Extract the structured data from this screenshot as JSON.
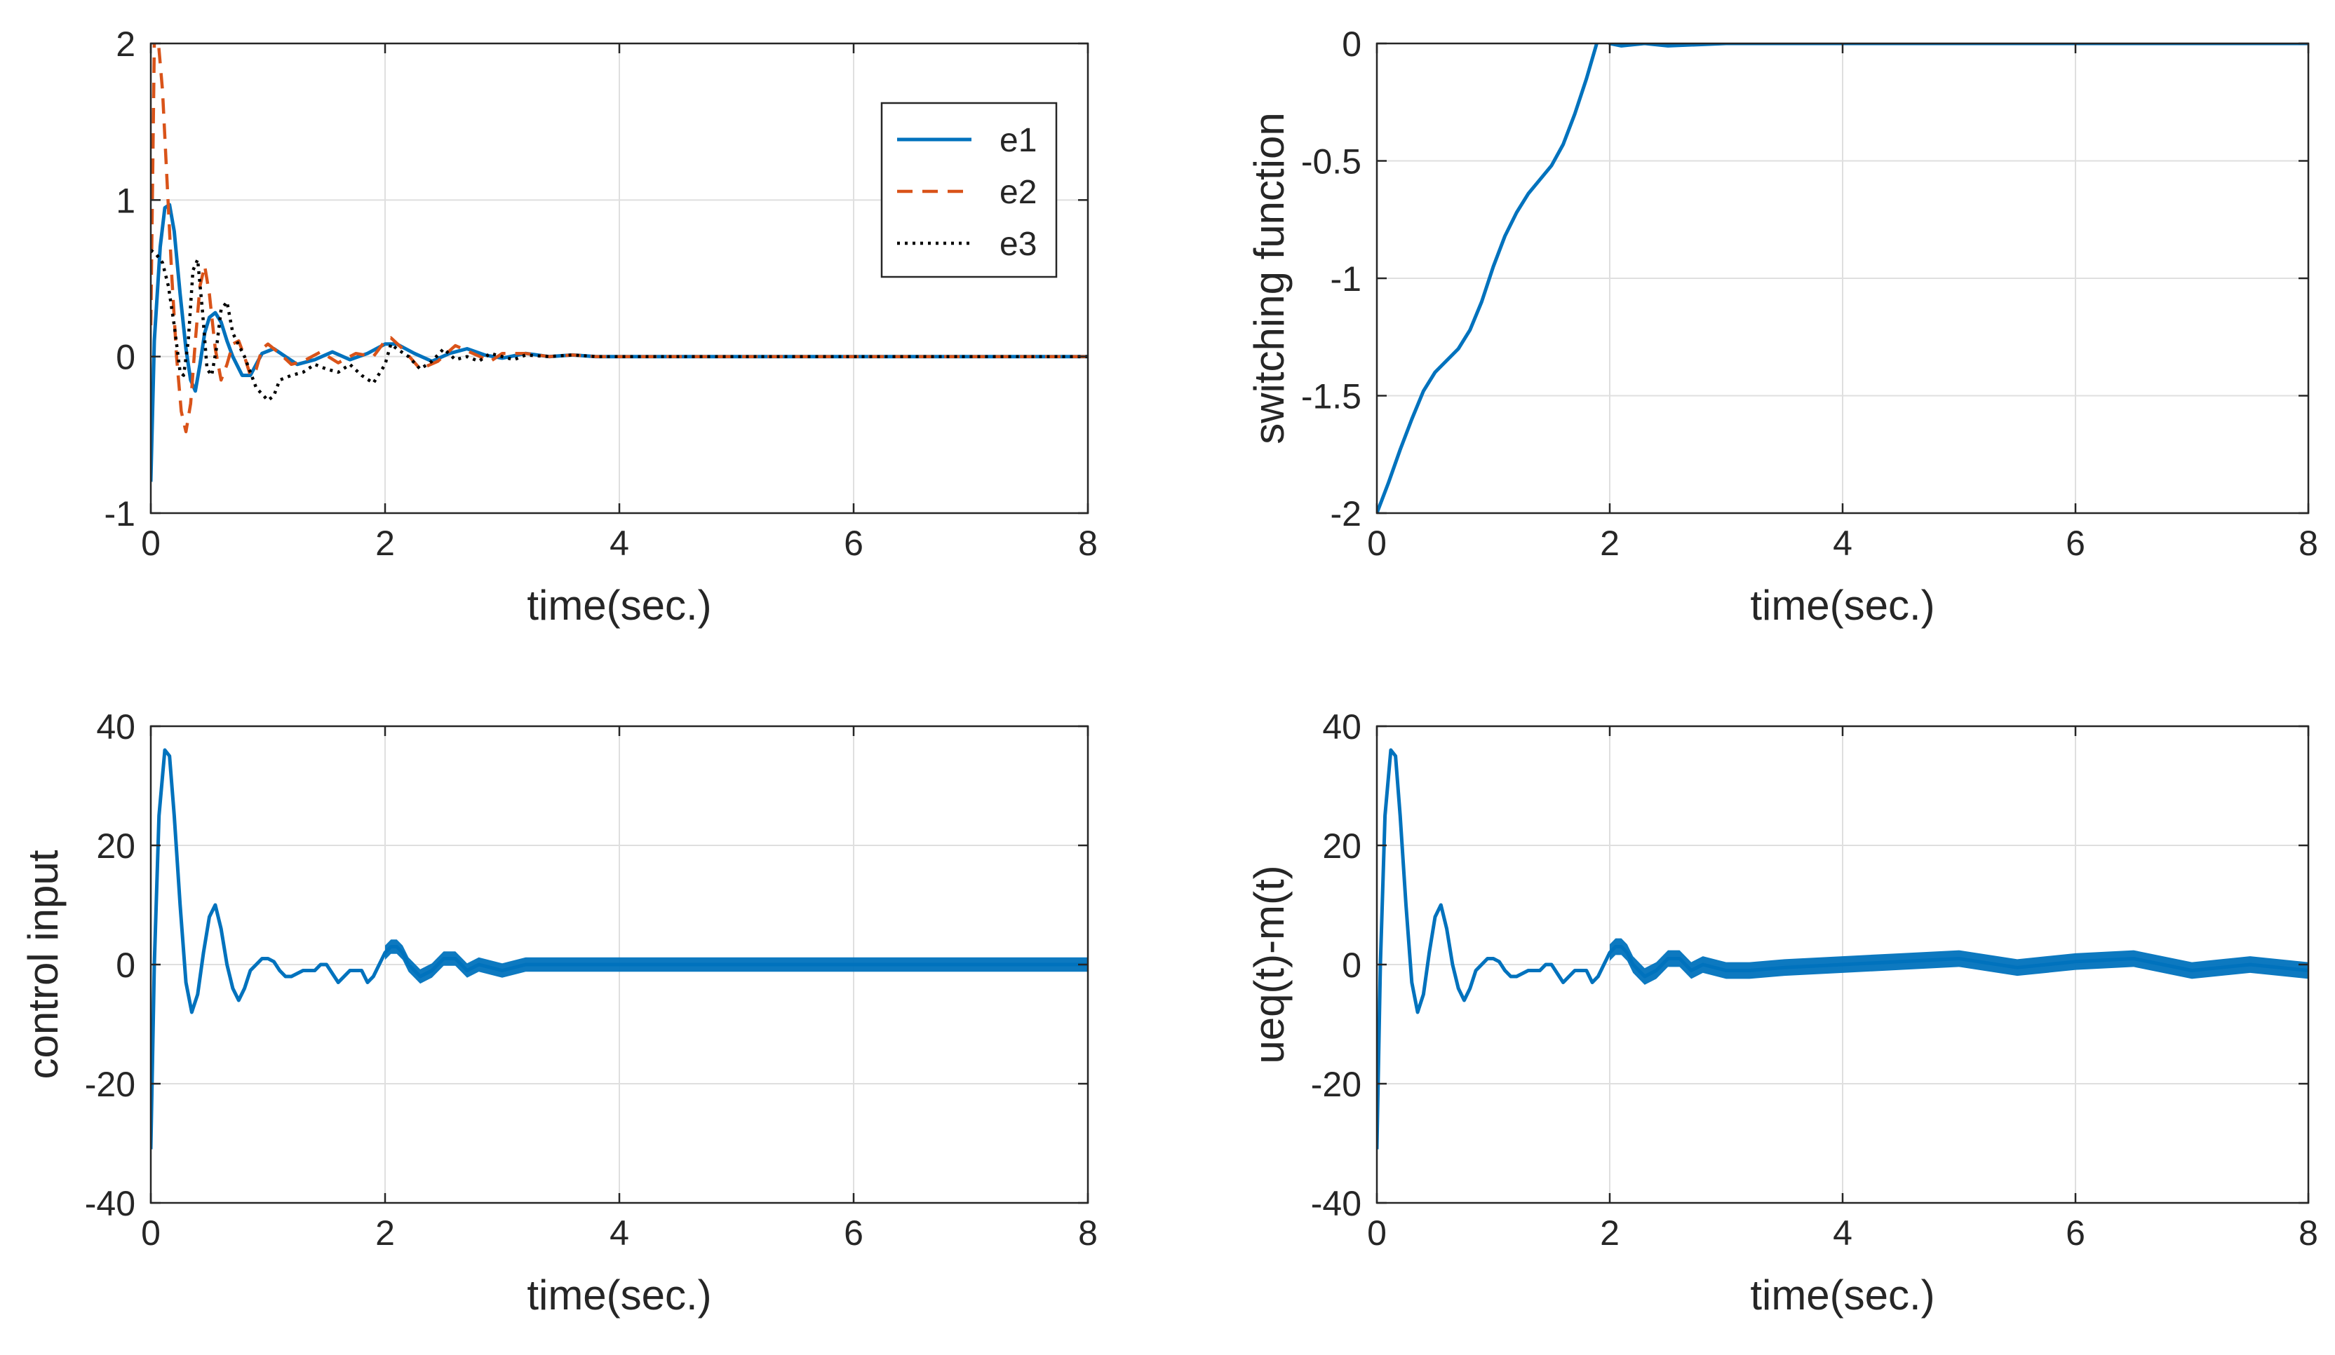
{
  "colors": {
    "blue": "#0072BD",
    "orange": "#D95319",
    "black": "#000000",
    "grid": "#DFDFDF",
    "axis": "#262626"
  },
  "chart_data": [
    {
      "type": "line",
      "xlabel": "time(sec.)",
      "ylabel": "",
      "xlim": [
        0,
        8
      ],
      "ylim": [
        -1,
        2
      ],
      "xticks": [
        "0",
        "2",
        "4",
        "6",
        "8"
      ],
      "yticks": [
        "-1",
        "0",
        "1",
        "2"
      ],
      "grid": true,
      "legend": {
        "position": "top-right",
        "entries": [
          "e1",
          "e2",
          "e3"
        ]
      },
      "series": [
        {
          "name": "e1",
          "style": "solid",
          "color": "#0072BD",
          "x": [
            0,
            0.03,
            0.08,
            0.12,
            0.16,
            0.2,
            0.25,
            0.3,
            0.34,
            0.38,
            0.42,
            0.46,
            0.5,
            0.55,
            0.6,
            0.65,
            0.7,
            0.78,
            0.85,
            0.95,
            1.05,
            1.15,
            1.25,
            1.4,
            1.55,
            1.7,
            1.85,
            2.0,
            2.1,
            2.25,
            2.4,
            2.55,
            2.7,
            2.85,
            3.0,
            3.2,
            3.4,
            3.6,
            3.8,
            4,
            5,
            6,
            7,
            8
          ],
          "y": [
            -0.8,
            0.1,
            0.7,
            0.95,
            0.97,
            0.8,
            0.4,
            0.05,
            -0.15,
            -0.22,
            -0.05,
            0.15,
            0.25,
            0.28,
            0.22,
            0.1,
            0.0,
            -0.12,
            -0.12,
            0.02,
            0.05,
            0.0,
            -0.05,
            -0.02,
            0.03,
            -0.02,
            0.02,
            0.08,
            0.08,
            0.02,
            -0.03,
            0.02,
            0.05,
            0.01,
            -0.01,
            0.02,
            0.0,
            0.01,
            0.0,
            0,
            0,
            0,
            0,
            0
          ]
        },
        {
          "name": "e2",
          "style": "dashed",
          "color": "#D95319",
          "x": [
            0,
            0.03,
            0.06,
            0.1,
            0.14,
            0.18,
            0.22,
            0.26,
            0.3,
            0.34,
            0.38,
            0.42,
            0.46,
            0.5,
            0.55,
            0.6,
            0.65,
            0.7,
            0.75,
            0.8,
            0.85,
            0.9,
            0.95,
            1.0,
            1.1,
            1.2,
            1.3,
            1.45,
            1.6,
            1.75,
            1.9,
            2.0,
            2.05,
            2.15,
            2.3,
            2.45,
            2.6,
            2.75,
            2.9,
            3.0,
            3.2,
            3.4,
            3.6,
            3.8,
            4,
            5,
            6,
            7,
            8
          ],
          "y": [
            0.2,
            2.0,
            2.05,
            1.7,
            1.1,
            0.5,
            0.0,
            -0.35,
            -0.48,
            -0.3,
            0.1,
            0.45,
            0.58,
            0.4,
            0.05,
            -0.15,
            -0.05,
            0.08,
            0.1,
            0.0,
            -0.12,
            -0.08,
            0.05,
            0.08,
            0.02,
            -0.05,
            -0.03,
            0.03,
            -0.04,
            0.02,
            0.0,
            0.1,
            0.12,
            0.05,
            -0.08,
            -0.03,
            0.07,
            0.02,
            -0.03,
            0.02,
            0.02,
            0.0,
            0.01,
            0.0,
            0,
            0,
            0,
            0,
            0
          ]
        },
        {
          "name": "e3",
          "style": "dotted",
          "color": "#000000",
          "x": [
            0,
            0.05,
            0.1,
            0.15,
            0.2,
            0.25,
            0.28,
            0.32,
            0.36,
            0.4,
            0.44,
            0.48,
            0.52,
            0.56,
            0.6,
            0.65,
            0.7,
            0.8,
            0.9,
            1.0,
            1.05,
            1.1,
            1.2,
            1.3,
            1.4,
            1.5,
            1.6,
            1.7,
            1.8,
            1.9,
            2.0,
            2.05,
            2.1,
            2.2,
            2.3,
            2.4,
            2.5,
            2.6,
            2.7,
            2.8,
            2.9,
            3.0,
            3.1,
            3.2,
            3.4,
            3.6,
            3.8,
            4,
            5,
            6,
            7,
            8
          ],
          "y": [
            0.68,
            0.65,
            0.6,
            0.45,
            0.2,
            -0.1,
            -0.12,
            0.1,
            0.55,
            0.62,
            0.3,
            -0.08,
            -0.12,
            0.05,
            0.3,
            0.35,
            0.15,
            0.0,
            -0.2,
            -0.28,
            -0.25,
            -0.15,
            -0.12,
            -0.1,
            -0.05,
            -0.08,
            -0.1,
            -0.05,
            -0.12,
            -0.17,
            -0.05,
            0.08,
            0.05,
            0.0,
            -0.08,
            -0.03,
            0.05,
            -0.02,
            0.0,
            -0.03,
            0.02,
            0.0,
            -0.02,
            0.01,
            0.0,
            0.01,
            0.0,
            0,
            0,
            0,
            0,
            0
          ]
        }
      ]
    },
    {
      "type": "line",
      "xlabel": "time(sec.)",
      "ylabel": "switching function",
      "xlim": [
        0,
        8
      ],
      "ylim": [
        -2,
        0
      ],
      "xticks": [
        "0",
        "2",
        "4",
        "6",
        "8"
      ],
      "yticks": [
        "-2",
        "-1.5",
        "-1",
        "-0.5",
        "0"
      ],
      "grid": true,
      "series": [
        {
          "name": "s",
          "style": "solid",
          "color": "#0072BD",
          "x": [
            0,
            0.1,
            0.2,
            0.3,
            0.4,
            0.5,
            0.6,
            0.7,
            0.8,
            0.9,
            1.0,
            1.1,
            1.2,
            1.3,
            1.4,
            1.5,
            1.6,
            1.7,
            1.8,
            1.9,
            1.95,
            2.0,
            2.1,
            2.3,
            2.5,
            3,
            4,
            5,
            6,
            7,
            8
          ],
          "y": [
            -2.0,
            -1.87,
            -1.73,
            -1.6,
            -1.48,
            -1.4,
            -1.35,
            -1.3,
            -1.22,
            -1.1,
            -0.95,
            -0.82,
            -0.72,
            -0.64,
            -0.58,
            -0.52,
            -0.43,
            -0.3,
            -0.15,
            0.02,
            0.03,
            0.0,
            -0.01,
            0.0,
            -0.01,
            0.0,
            0.0,
            0.0,
            0.0,
            0.0,
            0.0
          ]
        }
      ]
    },
    {
      "type": "line",
      "xlabel": "time(sec.)",
      "ylabel": "control input",
      "xlim": [
        0,
        8
      ],
      "ylim": [
        -40,
        40
      ],
      "xticks": [
        "0",
        "2",
        "4",
        "6",
        "8"
      ],
      "yticks": [
        "-40",
        "-20",
        "0",
        "20",
        "40"
      ],
      "grid": true,
      "series": [
        {
          "name": "u",
          "style": "solid",
          "color": "#0072BD",
          "x": [
            0,
            0.03,
            0.07,
            0.12,
            0.16,
            0.2,
            0.25,
            0.3,
            0.35,
            0.4,
            0.45,
            0.5,
            0.55,
            0.6,
            0.65,
            0.7,
            0.75,
            0.8,
            0.85,
            0.9,
            0.95,
            1.0,
            1.05,
            1.1,
            1.15,
            1.2,
            1.3,
            1.4,
            1.45,
            1.5,
            1.6,
            1.7,
            1.8,
            1.85,
            1.9,
            2.0,
            2.05,
            2.1,
            2.15,
            2.2,
            2.3,
            2.4,
            2.5,
            2.6,
            2.7,
            2.8,
            3.0,
            3.2,
            3.5,
            4,
            5,
            6,
            7,
            8
          ],
          "y": [
            -31,
            0,
            25,
            36,
            35,
            25,
            10,
            -3,
            -8,
            -5,
            2,
            8,
            10,
            6,
            0,
            -4,
            -6,
            -4,
            -1,
            0,
            1,
            1,
            0.5,
            -1,
            -2,
            -2,
            -1,
            -1,
            0,
            0,
            -3,
            -1,
            -1,
            -3,
            -2,
            2,
            3,
            3,
            2,
            0,
            -2,
            -1,
            1,
            1,
            -1,
            0,
            -1,
            0,
            0,
            0,
            0,
            0,
            0,
            0
          ],
          "band": {
            "from": 2.0,
            "to": 8.0,
            "amplitude": 1.2
          }
        }
      ]
    },
    {
      "type": "line",
      "xlabel": "time(sec.)",
      "ylabel": "ueq(t)-m(t)",
      "xlim": [
        0,
        8
      ],
      "ylim": [
        -40,
        40
      ],
      "xticks": [
        "0",
        "2",
        "4",
        "6",
        "8"
      ],
      "yticks": [
        "-40",
        "-20",
        "0",
        "20",
        "40"
      ],
      "grid": true,
      "series": [
        {
          "name": "ueq-m",
          "style": "solid",
          "color": "#0072BD",
          "x": [
            0,
            0.03,
            0.07,
            0.12,
            0.16,
            0.2,
            0.25,
            0.3,
            0.35,
            0.4,
            0.45,
            0.5,
            0.55,
            0.6,
            0.65,
            0.7,
            0.75,
            0.8,
            0.85,
            0.9,
            0.95,
            1.0,
            1.05,
            1.1,
            1.15,
            1.2,
            1.3,
            1.4,
            1.45,
            1.5,
            1.6,
            1.7,
            1.8,
            1.85,
            1.9,
            2.0,
            2.05,
            2.1,
            2.15,
            2.2,
            2.3,
            2.4,
            2.5,
            2.6,
            2.7,
            2.8,
            3.0,
            3.2,
            3.5,
            4.0,
            4.5,
            5.0,
            5.5,
            6.0,
            6.5,
            7.0,
            7.5,
            8.0
          ],
          "y": [
            -31,
            0,
            25,
            36,
            35,
            25,
            10,
            -3,
            -8,
            -5,
            2,
            8,
            10,
            6,
            0,
            -4,
            -6,
            -4,
            -1,
            0,
            1,
            1,
            0.5,
            -1,
            -2,
            -2,
            -1,
            -1,
            0,
            0,
            -3,
            -1,
            -1,
            -3,
            -2,
            2,
            3,
            3,
            2,
            0,
            -2,
            -1,
            1,
            1,
            -1,
            0,
            -1,
            -1,
            -0.5,
            0,
            0.5,
            1,
            -0.5,
            0.5,
            1,
            -1,
            0,
            -1
          ],
          "band": {
            "from": 2.0,
            "to": 8.0,
            "amplitude": 1.4
          }
        }
      ]
    }
  ]
}
